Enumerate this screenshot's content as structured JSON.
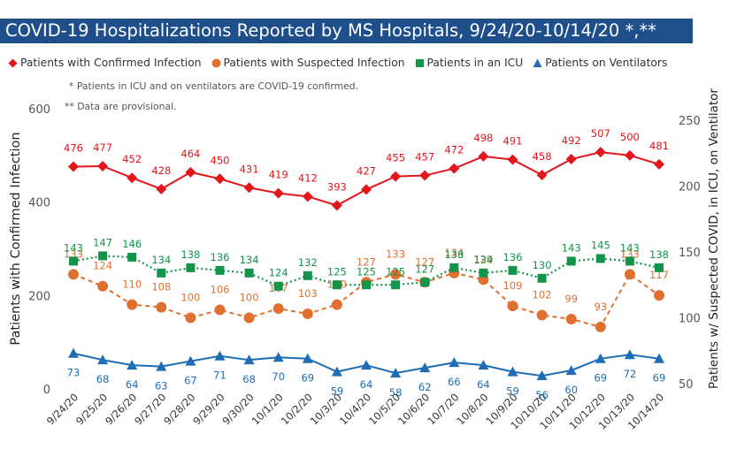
{
  "title": "COVID-19 Hospitalizations Reported by MS Hospitals, 9/24/20-10/14/20 *,**",
  "notes": [
    "* Patients in ICU and on ventilators are COVID-19 confirmed.",
    "** Data are provisional."
  ],
  "colors": {
    "title_bg": "#1f4f8b",
    "confirmed": "#e3161b",
    "suspected": "#e07030",
    "icu": "#14944a",
    "ventilators": "#1f6db5"
  },
  "chart_data": {
    "type": "line",
    "categories": [
      "9/24/20",
      "9/25/20",
      "9/26/20",
      "9/27/20",
      "9/28/20",
      "9/29/20",
      "9/30/20",
      "10/1/20",
      "10/2/20",
      "10/3/20",
      "10/4/20",
      "10/5/20",
      "10/6/20",
      "10/7/20",
      "10/8/20",
      "10/9/20",
      "10/10/20",
      "10/11/20",
      "10/12/20",
      "10/13/20",
      "10/14/20"
    ],
    "y_left": {
      "label": "Patients with Confirmed Infection",
      "range": [
        0,
        600
      ],
      "ticks": [
        0,
        200,
        400,
        600
      ]
    },
    "y_right": {
      "label": "Patients w/ Suspected COVID, in ICU, on Ventilator",
      "range": [
        50,
        260
      ],
      "ticks": [
        50,
        100,
        150,
        200,
        250
      ]
    },
    "legend_position": "top",
    "series": [
      {
        "name": "Patients with Confirmed Infection",
        "axis": "left",
        "marker": "diamond",
        "line": "solid",
        "values": [
          476,
          477,
          452,
          428,
          464,
          450,
          431,
          419,
          412,
          393,
          427,
          455,
          457,
          472,
          498,
          491,
          458,
          492,
          507,
          500,
          481
        ]
      },
      {
        "name": "Patients with Suspected Infection",
        "axis": "right",
        "marker": "circle",
        "line": "dashed",
        "values": [
          133,
          124,
          110,
          108,
          100,
          106,
          100,
          107,
          103,
          110,
          127,
          133,
          127,
          134,
          129,
          109,
          102,
          99,
          93,
          133,
          117
        ]
      },
      {
        "name": "Patients in an ICU",
        "axis": "right",
        "marker": "square",
        "line": "dotted",
        "values": [
          143,
          147,
          146,
          134,
          138,
          136,
          134,
          124,
          132,
          125,
          125,
          125,
          127,
          138,
          134,
          136,
          130,
          143,
          145,
          143,
          138
        ]
      },
      {
        "name": "Patients on Ventilators",
        "axis": "right",
        "marker": "triangle",
        "line": "solid",
        "values": [
          73,
          68,
          64,
          63,
          67,
          71,
          68,
          70,
          69,
          59,
          64,
          58,
          62,
          66,
          64,
          59,
          56,
          60,
          69,
          72,
          69
        ]
      }
    ]
  }
}
